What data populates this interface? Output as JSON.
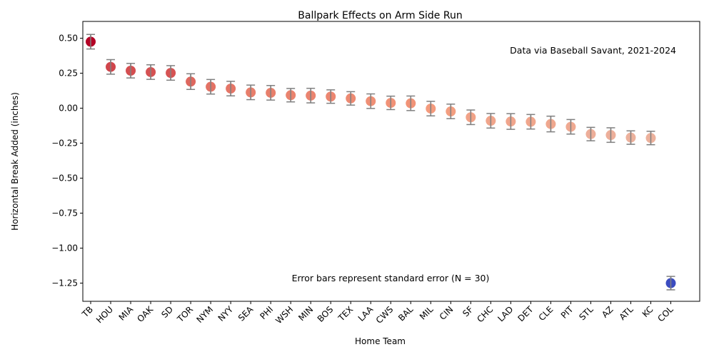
{
  "chart_data": {
    "type": "scatter",
    "title": "Ballpark Effects on Arm Side Run",
    "xlabel": "Home Team",
    "ylabel": "Horizontal Break Added (inches)",
    "ylim": [
      -1.38,
      0.62
    ],
    "yticks": [
      0.5,
      0.25,
      0.0,
      -0.25,
      -0.5,
      -0.75,
      -1.0,
      -1.25
    ],
    "ytick_labels": [
      "0.50",
      "0.25",
      "0.00",
      "−0.25",
      "−0.50",
      "−0.75",
      "−1.00",
      "−1.25"
    ],
    "grid": false,
    "annotations": {
      "source": "Data via Baseball Savant, 2021-2024",
      "error_note": "Error bars represent standard error (N = 30)"
    },
    "categories": [
      "TB",
      "HOU",
      "MIA",
      "OAK",
      "SD",
      "TOR",
      "NYM",
      "NYY",
      "SEA",
      "PHI",
      "WSH",
      "MIN",
      "BOS",
      "TEX",
      "LAA",
      "CWS",
      "BAL",
      "MIL",
      "CIN",
      "SF",
      "CHC",
      "LAD",
      "DET",
      "CLE",
      "PIT",
      "STL",
      "AZ",
      "ATL",
      "KC",
      "COL"
    ],
    "values": [
      0.475,
      0.295,
      0.268,
      0.258,
      0.252,
      0.19,
      0.153,
      0.14,
      0.113,
      0.11,
      0.093,
      0.09,
      0.083,
      0.07,
      0.05,
      0.038,
      0.035,
      -0.003,
      -0.023,
      -0.065,
      -0.09,
      -0.095,
      -0.097,
      -0.113,
      -0.133,
      -0.185,
      -0.192,
      -0.21,
      -0.213,
      -1.25
    ],
    "errors": [
      0.052,
      0.052,
      0.052,
      0.052,
      0.052,
      0.056,
      0.052,
      0.052,
      0.052,
      0.052,
      0.048,
      0.052,
      0.048,
      0.048,
      0.052,
      0.048,
      0.052,
      0.052,
      0.052,
      0.052,
      0.052,
      0.056,
      0.052,
      0.056,
      0.052,
      0.048,
      0.052,
      0.048,
      0.048,
      0.048
    ],
    "colors": {
      "point_scale": "coolwarm",
      "errorbar": "#808080",
      "axis": "#000000"
    }
  }
}
